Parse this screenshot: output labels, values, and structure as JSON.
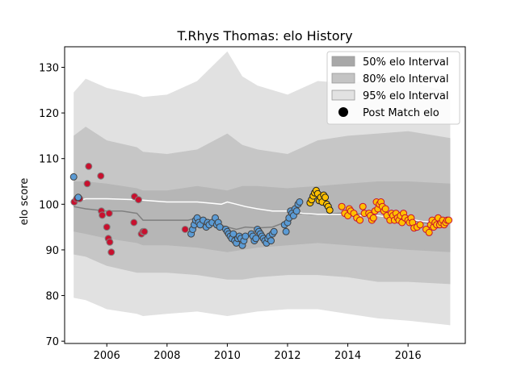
{
  "chart_data": {
    "type": "scatter",
    "title": "T.Rhys Thomas: elo History",
    "xlabel": "",
    "ylabel": "elo score",
    "xlim": [
      2004.6,
      2017.9
    ],
    "ylim": [
      69.5,
      134.5
    ],
    "x_ticks": [
      2006,
      2008,
      2010,
      2012,
      2014,
      2016
    ],
    "x_tick_labels": [
      "2006",
      "2008",
      "2010",
      "2012",
      "2014",
      "2016"
    ],
    "y_ticks": [
      70,
      80,
      90,
      100,
      110,
      120,
      130
    ],
    "y_tick_labels": [
      "70",
      "80",
      "90",
      "100",
      "110",
      "120",
      "130"
    ],
    "grid": false,
    "legend_position": "top-right",
    "legend": [
      {
        "label": "50% elo Interval",
        "kind": "band",
        "color": "#9e9e9e"
      },
      {
        "label": "80% elo Interval",
        "kind": "band",
        "color": "#b4b4b4"
      },
      {
        "label": "95% elo Interval",
        "kind": "band",
        "color": "#d7d7d7"
      },
      {
        "label": "Post Match elo",
        "kind": "marker",
        "color": "#000000"
      }
    ],
    "bands": {
      "x": [
        2004.9,
        2005.3,
        2006.0,
        2007.0,
        2007.2,
        2008.0,
        2009.0,
        2010.0,
        2010.5,
        2011.0,
        2012.0,
        2013.0,
        2014.0,
        2015.0,
        2016.0,
        2017.4
      ],
      "p50_lo": [
        94.0,
        93.5,
        92.5,
        91.5,
        91.0,
        91.0,
        90.5,
        89.5,
        90.0,
        90.5,
        91.0,
        91.5,
        91.0,
        90.5,
        90.0,
        89.5
      ],
      "p50_hi": [
        105.0,
        105.0,
        104.5,
        103.5,
        103.0,
        103.0,
        104.0,
        103.0,
        104.0,
        104.0,
        103.5,
        104.0,
        104.5,
        105.0,
        105.0,
        104.5
      ],
      "p80_lo": [
        89.0,
        88.5,
        86.5,
        85.0,
        85.0,
        85.0,
        84.5,
        83.5,
        83.5,
        84.0,
        84.5,
        84.5,
        84.0,
        83.0,
        83.0,
        82.5
      ],
      "p80_hi": [
        115.0,
        117.0,
        114.0,
        112.5,
        111.5,
        111.0,
        112.0,
        115.5,
        113.0,
        112.0,
        111.0,
        114.0,
        115.0,
        115.5,
        116.0,
        114.5
      ],
      "p95_lo": [
        79.5,
        79.0,
        77.0,
        76.0,
        75.5,
        76.0,
        76.5,
        75.5,
        76.0,
        76.5,
        77.0,
        77.0,
        76.0,
        75.0,
        74.5,
        73.5
      ],
      "p95_hi": [
        124.5,
        127.5,
        125.5,
        124.0,
        123.5,
        124.0,
        127.0,
        133.5,
        128.0,
        126.0,
        124.0,
        127.0,
        126.5,
        127.5,
        127.0,
        124.5
      ]
    },
    "mean_line": {
      "color": "#ffffff",
      "x": [
        2004.9,
        2005.3,
        2006.0,
        2007.0,
        2008.0,
        2009.0,
        2009.8,
        2010.0,
        2010.3,
        2010.6,
        2011.0,
        2011.5,
        2012.0,
        2012.5,
        2013.0,
        2013.5,
        2014.0,
        2014.5,
        2015.0,
        2015.5,
        2016.0,
        2016.5,
        2017.0,
        2017.4
      ],
      "y": [
        100.5,
        101.2,
        101.2,
        101.0,
        100.5,
        100.5,
        100.0,
        100.5,
        100.0,
        99.5,
        99.0,
        98.5,
        98.5,
        98.0,
        97.8,
        97.8,
        97.8,
        97.5,
        97.5,
        97.0,
        96.8,
        96.2,
        96.0,
        96.0
      ]
    },
    "median_line": {
      "color": "#808080",
      "x": [
        2004.9,
        2005.3,
        2006.0,
        2006.5,
        2007.0,
        2007.2,
        2008.0,
        2008.7,
        2009.0,
        2009.5,
        2010.0,
        2010.3,
        2010.6,
        2011.0,
        2011.5,
        2011.9,
        2012.3,
        2012.8,
        2013.2,
        2013.7,
        2014.0,
        2014.5,
        2015.0,
        2015.5,
        2016.0,
        2016.5,
        2017.0,
        2017.4
      ],
      "y": [
        99.5,
        99.0,
        98.5,
        98.5,
        98.0,
        96.5,
        96.5,
        96.5,
        97.0,
        96.0,
        95.0,
        94.5,
        95.0,
        94.8,
        95.0,
        96.0,
        98.0,
        97.8,
        97.8,
        98.0,
        98.0,
        97.8,
        97.5,
        97.0,
        96.5,
        96.0,
        95.5,
        96.0
      ]
    },
    "series": [
      {
        "fill": "#c8102e",
        "edge": "#808080",
        "x": [
          2004.92,
          2005.0,
          2005.1,
          2005.35,
          2005.4,
          2005.8,
          2005.82,
          2005.85,
          2006.0,
          2006.05,
          2006.08,
          2006.1,
          2006.15,
          2006.9,
          2006.92,
          2007.05,
          2007.15,
          2007.2,
          2007.25,
          2008.6
        ],
        "y": [
          100.5,
          101.2,
          101.2,
          104.5,
          108.3,
          106.2,
          98.5,
          97.6,
          95.0,
          92.5,
          98.0,
          91.7,
          89.5,
          96.0,
          101.7,
          101.0,
          93.5,
          94.0,
          94.0,
          94.5
        ]
      },
      {
        "fill": "#5b9bd5",
        "edge": "#404040",
        "x": [
          2004.9,
          2005.05,
          2008.8,
          2008.85,
          2008.9,
          2008.95,
          2009.0,
          2009.05,
          2009.1,
          2009.2,
          2009.3,
          2009.35,
          2009.4,
          2009.5,
          2009.6,
          2009.65,
          2009.7,
          2009.75,
          2009.95,
          2010.0,
          2010.05,
          2010.1,
          2010.15,
          2010.2,
          2010.25,
          2010.3,
          2010.35,
          2010.4,
          2010.45,
          2010.5,
          2010.55,
          2010.6,
          2010.8,
          2010.85,
          2010.9,
          2010.95,
          2011.0,
          2011.05,
          2011.1,
          2011.15,
          2011.2,
          2011.25,
          2011.3,
          2011.35,
          2011.4,
          2011.45,
          2011.5,
          2011.55,
          2011.9,
          2011.95,
          2012.0,
          2012.05,
          2012.1,
          2012.15,
          2012.2,
          2012.25,
          2012.3,
          2012.35,
          2012.4
        ],
        "y": [
          106.0,
          101.5,
          93.5,
          94.5,
          95.5,
          96.5,
          97.0,
          96.0,
          95.5,
          96.5,
          95.0,
          96.0,
          95.5,
          96.0,
          97.0,
          95.5,
          96.0,
          95.0,
          94.5,
          94.0,
          93.5,
          93.0,
          92.5,
          93.5,
          92.0,
          91.5,
          92.5,
          93.0,
          92.5,
          91.0,
          92.0,
          93.0,
          93.5,
          93.0,
          92.0,
          92.5,
          94.5,
          94.0,
          93.5,
          93.0,
          92.5,
          92.0,
          91.5,
          92.5,
          93.0,
          92.0,
          93.5,
          94.0,
          95.5,
          94.0,
          96.0,
          97.0,
          98.5,
          98.0,
          97.5,
          99.0,
          98.5,
          100.0,
          100.5
        ]
      },
      {
        "fill": "#ffc000",
        "edge": "#202020",
        "x": [
          2012.75,
          2012.8,
          2012.85,
          2012.9,
          2012.95,
          2013.0,
          2013.05,
          2013.1,
          2013.15,
          2013.2,
          2013.25,
          2013.3,
          2013.35,
          2013.4
        ],
        "y": [
          100.3,
          101.0,
          101.8,
          102.5,
          103.0,
          102.3,
          100.8,
          101.5,
          100.5,
          102.0,
          101.5,
          100.0,
          99.5,
          98.7
        ]
      },
      {
        "fill": "#ffc000",
        "edge": "#c8102e",
        "x": [
          2013.8,
          2013.9,
          2014.0,
          2014.05,
          2014.1,
          2014.2,
          2014.3,
          2014.4,
          2014.5,
          2014.55,
          2014.7,
          2014.75,
          2014.8,
          2014.85,
          2014.9,
          2014.95,
          2015.0,
          2015.05,
          2015.1,
          2015.15,
          2015.2,
          2015.25,
          2015.3,
          2015.4,
          2015.45,
          2015.5,
          2015.55,
          2015.6,
          2015.65,
          2015.7,
          2015.75,
          2015.8,
          2015.85,
          2015.9,
          2016.0,
          2016.05,
          2016.1,
          2016.15,
          2016.2,
          2016.3,
          2016.4,
          2016.6,
          2016.7,
          2016.75,
          2016.8,
          2016.85,
          2016.9,
          2016.95,
          2017.0,
          2017.05,
          2017.1,
          2017.15,
          2017.2,
          2017.25,
          2017.3,
          2017.35
        ],
        "y": [
          99.5,
          98.0,
          97.5,
          99.0,
          98.5,
          98.0,
          97.0,
          96.5,
          99.5,
          98.0,
          98.0,
          97.5,
          96.5,
          97.0,
          98.5,
          100.5,
          99.0,
          100.0,
          100.5,
          99.5,
          98.5,
          99.0,
          97.5,
          96.5,
          98.0,
          97.5,
          96.5,
          98.0,
          97.0,
          96.5,
          97.5,
          96.0,
          98.0,
          97.0,
          96.5,
          96.0,
          97.0,
          96.0,
          94.8,
          95.0,
          95.5,
          94.5,
          93.8,
          95.5,
          96.5,
          95.0,
          96.0,
          95.5,
          97.0,
          95.5,
          96.0,
          96.5,
          95.5,
          96.0,
          96.5,
          96.5
        ]
      }
    ]
  }
}
